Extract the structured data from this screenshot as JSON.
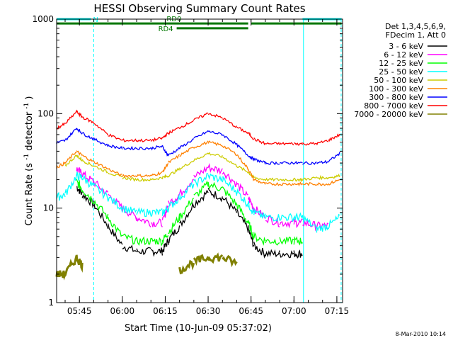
{
  "chart_data": {
    "type": "line",
    "title": "HESSI Observing Summary Count Rates",
    "xlabel": "Start Time (10-Jun-09 05:37:02)",
    "ylabel_main": "Count Rate (s",
    "ylabel_sup1": "-1",
    "ylabel_mid": " detector",
    "ylabel_sup2": "-1",
    "ylabel_end": ")",
    "y_scale": "log",
    "ylim": [
      1,
      1000
    ],
    "xlim": [
      "05:37:02",
      "07:17:00"
    ],
    "x_ticks": [
      "05:45",
      "06:00",
      "06:15",
      "06:30",
      "06:45",
      "07:00",
      "07:15"
    ],
    "y_ticks": [
      "1",
      "10",
      "100",
      "1000"
    ],
    "grid": false,
    "legend_position": "right",
    "legend_header": [
      "Det 1,3,4,5,6,9,",
      "FDecim 1, Att 0"
    ],
    "date_stamp": "8-Mar-2010 10:14",
    "annotations": [
      {
        "label": "N",
        "color": "#00ffff",
        "x_start": "05:37:02",
        "x_end": "05:49:00",
        "y": 1000
      },
      {
        "label": "",
        "color": "#00ffff",
        "x_start": "07:03:00",
        "x_end": "07:16:40",
        "y": 1000
      },
      {
        "label": "RD0",
        "color": "#007700",
        "x_start": "05:37:02",
        "x_end": "06:44:00",
        "y": 900
      },
      {
        "label": "",
        "color": "#007700",
        "x_start": "06:45:00",
        "x_end": "07:16:40",
        "y": 900
      },
      {
        "label": "RD4",
        "color": "#007700",
        "x_start": "06:19:00",
        "x_end": "06:44:00",
        "y": 800
      }
    ],
    "vlines": [
      {
        "x": "05:37:02",
        "color": "#00ffff",
        "style": "solid"
      },
      {
        "x": "05:50:00",
        "color": "#00ffff",
        "style": "dashed"
      },
      {
        "x": "07:03:20",
        "color": "#00ffff",
        "style": "solid"
      },
      {
        "x": "07:16:30",
        "color": "#00ffff",
        "style": "dashed"
      }
    ],
    "x": [
      "05:37",
      "05:40",
      "05:44",
      "05:46",
      "05:50",
      "05:55",
      "06:00",
      "06:05",
      "06:10",
      "06:14",
      "06:16",
      "06:20",
      "06:25",
      "06:30",
      "06:35",
      "06:40",
      "06:44",
      "06:46",
      "06:50",
      "06:55",
      "07:00",
      "07:03",
      "07:08",
      "07:12",
      "07:16"
    ],
    "series": [
      {
        "name": "3 - 6 keV",
        "color": "#000000",
        "values": [
          null,
          null,
          17,
          14,
          11,
          6.5,
          4,
          3.5,
          3.5,
          3.5,
          4.5,
          6.5,
          11,
          15,
          13,
          9,
          6,
          4,
          3.3,
          3.3,
          3.3,
          3.3,
          null,
          null,
          null
        ]
      },
      {
        "name": "6 - 12 keV",
        "color": "#ff00ff",
        "values": [
          null,
          null,
          26,
          23,
          19,
          14,
          10,
          8,
          7,
          7,
          11,
          14,
          21,
          27,
          25,
          18,
          13,
          10,
          8,
          7,
          7,
          7,
          6.5,
          6.5,
          null
        ]
      },
      {
        "name": "12 - 25 keV",
        "color": "#00ff00",
        "values": [
          null,
          null,
          19,
          16,
          12,
          8,
          5,
          4.5,
          4.5,
          4.5,
          5.5,
          8,
          13,
          18,
          16,
          11,
          7,
          5,
          4.5,
          4.5,
          4.5,
          4.5,
          null,
          null,
          null
        ]
      },
      {
        "name": "25 - 50 keV",
        "color": "#00ffff",
        "values": [
          13,
          14,
          22,
          21,
          17,
          13,
          10,
          9,
          9,
          9,
          10,
          13,
          18,
          22,
          20,
          15,
          11,
          9,
          8,
          8,
          8,
          8,
          6,
          6.5,
          8
        ]
      },
      {
        "name": "50 - 100 keV",
        "color": "#cccc00",
        "values": [
          null,
          28,
          36,
          32,
          28,
          24,
          21,
          20,
          20,
          21,
          22,
          26,
          32,
          38,
          35,
          28,
          24,
          21,
          20,
          20,
          20,
          20,
          21,
          21,
          22
        ]
      },
      {
        "name": "100 - 300 keV",
        "color": "#ff8000",
        "values": [
          27,
          30,
          40,
          36,
          31,
          26,
          22,
          22,
          22,
          24,
          30,
          36,
          44,
          50,
          46,
          37,
          26,
          20,
          18,
          18,
          18,
          18,
          18,
          18,
          20
        ]
      },
      {
        "name": "300 - 800 keV",
        "color": "#0000ff",
        "values": [
          49,
          52,
          70,
          62,
          54,
          46,
          43,
          43,
          43,
          45,
          36,
          43,
          54,
          65,
          60,
          47,
          36,
          33,
          30,
          30,
          30,
          30,
          30,
          31,
          38
        ]
      },
      {
        "name": "800 - 7000 keV",
        "color": "#ff0000",
        "values": [
          70,
          78,
          105,
          92,
          80,
          60,
          52,
          52,
          52,
          55,
          62,
          71,
          85,
          101,
          90,
          72,
          62,
          54,
          48,
          48,
          48,
          48,
          48,
          52,
          60
        ]
      },
      {
        "name": "7000 - 20000 keV",
        "color": "#808000",
        "values": [
          2,
          2,
          3,
          2.5,
          null,
          null,
          null,
          null,
          null,
          null,
          null,
          2.2,
          2.7,
          3,
          3,
          2.6,
          null,
          null,
          null,
          null,
          null,
          null,
          null,
          null,
          null
        ]
      }
    ]
  }
}
